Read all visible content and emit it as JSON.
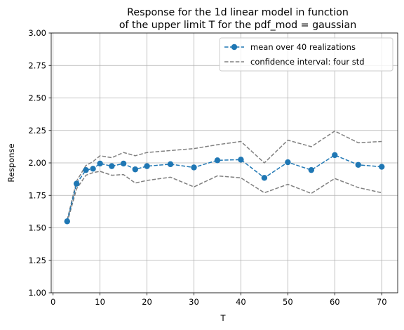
{
  "chart_data": {
    "type": "line",
    "title": "Response for the 1d linear model in function\nof the upper limit T for the pdf_mod = gaussian",
    "xlabel": "T",
    "ylabel": "Response",
    "xlim": [
      -0.4,
      73.4
    ],
    "ylim": [
      1.0,
      3.0
    ],
    "xticks": [
      0,
      10,
      20,
      30,
      40,
      50,
      60,
      70
    ],
    "xticklabels": [
      "0",
      "10",
      "20",
      "30",
      "40",
      "50",
      "60",
      "70"
    ],
    "yticks": [
      1.0,
      1.25,
      1.5,
      1.75,
      2.0,
      2.25,
      2.5,
      2.75,
      3.0
    ],
    "yticklabels": [
      "1.00",
      "1.25",
      "1.50",
      "1.75",
      "2.00",
      "2.25",
      "2.50",
      "2.75",
      "3.00"
    ],
    "grid": true,
    "legend_position": "top-right",
    "x": [
      3,
      5,
      7,
      8.5,
      10,
      12.5,
      15,
      17.5,
      20,
      25,
      30,
      35,
      40,
      45,
      50,
      55,
      60,
      65,
      70
    ],
    "series": [
      {
        "name": "mean over 40 realizations",
        "color": "#1f77b4",
        "style": "dashed-marker",
        "values": [
          1.55,
          1.84,
          1.945,
          1.955,
          1.995,
          1.975,
          1.995,
          1.95,
          1.975,
          1.99,
          1.965,
          2.02,
          2.025,
          1.885,
          2.005,
          1.945,
          2.06,
          1.985,
          1.97
        ]
      },
      {
        "name": "confidence interval: four std",
        "color": "#808080",
        "style": "dashed",
        "values": [
          1.56,
          1.86,
          1.98,
          2.01,
          2.055,
          2.04,
          2.08,
          2.055,
          2.08,
          2.095,
          2.11,
          2.14,
          2.165,
          2.0,
          2.175,
          2.125,
          2.245,
          2.155,
          2.165
        ]
      },
      {
        "color": "#808080",
        "style": "dashed",
        "values": [
          1.54,
          1.8,
          1.905,
          1.925,
          1.935,
          1.905,
          1.91,
          1.845,
          1.865,
          1.89,
          1.815,
          1.9,
          1.885,
          1.77,
          1.835,
          1.765,
          1.88,
          1.81,
          1.77
        ]
      }
    ]
  }
}
